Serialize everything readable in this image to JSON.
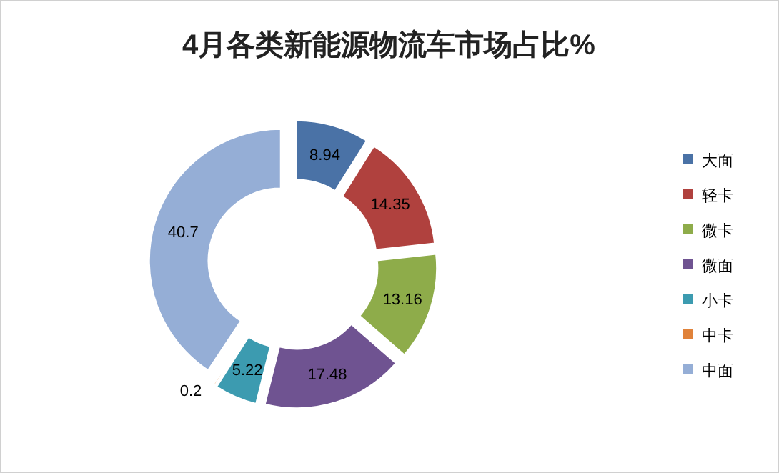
{
  "chart_data": {
    "type": "donut",
    "title": "4月各类新能源物流车市场占比%",
    "categories": [
      "大面",
      "轻卡",
      "微卡",
      "微面",
      "小卡",
      "中卡",
      "中面"
    ],
    "values": [
      8.94,
      14.35,
      13.16,
      17.48,
      5.22,
      0.2,
      40.7
    ],
    "colors": [
      "#4a72a6",
      "#b0413e",
      "#8eac4a",
      "#6f5391",
      "#3c9bb0",
      "#e0823a",
      "#95aed6"
    ],
    "data_labels": true,
    "legend": "right"
  }
}
